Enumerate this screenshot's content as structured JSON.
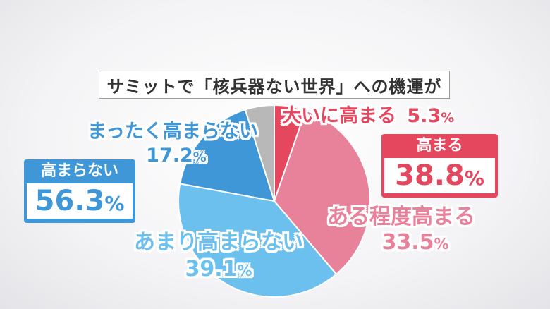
{
  "title": "サミットで「核兵器ない世界」への機運が",
  "chart_data": {
    "type": "pie",
    "title": "サミットで「核兵器ない世界」への機運が",
    "unit": "%",
    "slices": [
      {
        "label": "大いに高まる",
        "value": 5.3,
        "value_text": "5.3",
        "color": "#e5475f"
      },
      {
        "label": "ある程度高まる",
        "value": 33.5,
        "value_text": "33.5",
        "color": "#e8819a"
      },
      {
        "label": "あまり高まらない",
        "value": 39.1,
        "value_text": "39.1",
        "color": "#6cc0ee"
      },
      {
        "label": "まったく高まらない",
        "value": 17.2,
        "value_text": "17.2",
        "color": "#3f97d8"
      },
      {
        "label": "",
        "value": 4.9,
        "color": "#b8b8b8"
      }
    ]
  },
  "summary": {
    "positive": {
      "label": "高まる",
      "value": "38.8",
      "unit": "%",
      "color": "#e5475f"
    },
    "negative": {
      "label": "高まらない",
      "value": "56.3",
      "unit": "%",
      "color": "#3f97d8"
    }
  }
}
